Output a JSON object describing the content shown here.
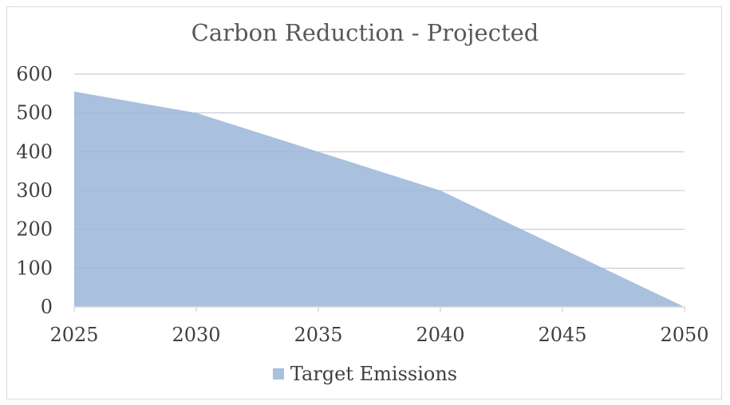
{
  "chart_data": {
    "type": "area",
    "title": "Carbon Reduction - Projected",
    "xlabel": "",
    "ylabel": "",
    "x": [
      2025,
      2030,
      2035,
      2040,
      2045,
      2050
    ],
    "series": [
      {
        "name": "Target Emissions",
        "values": [
          555,
          500,
          400,
          300,
          150,
          0
        ]
      }
    ],
    "xlim": [
      2025,
      2050
    ],
    "ylim": [
      0,
      600
    ],
    "y_ticks": [
      0,
      100,
      200,
      300,
      400,
      500,
      600
    ],
    "x_ticks": [
      2025,
      2030,
      2035,
      2040,
      2045,
      2050
    ],
    "grid": "horizontal",
    "legend_position": "bottom",
    "colors": {
      "area": "#a9c0de",
      "gridline": "#d9d9d9",
      "axis": "#d9d9d9",
      "text": "#404040",
      "title": "#595959"
    }
  }
}
